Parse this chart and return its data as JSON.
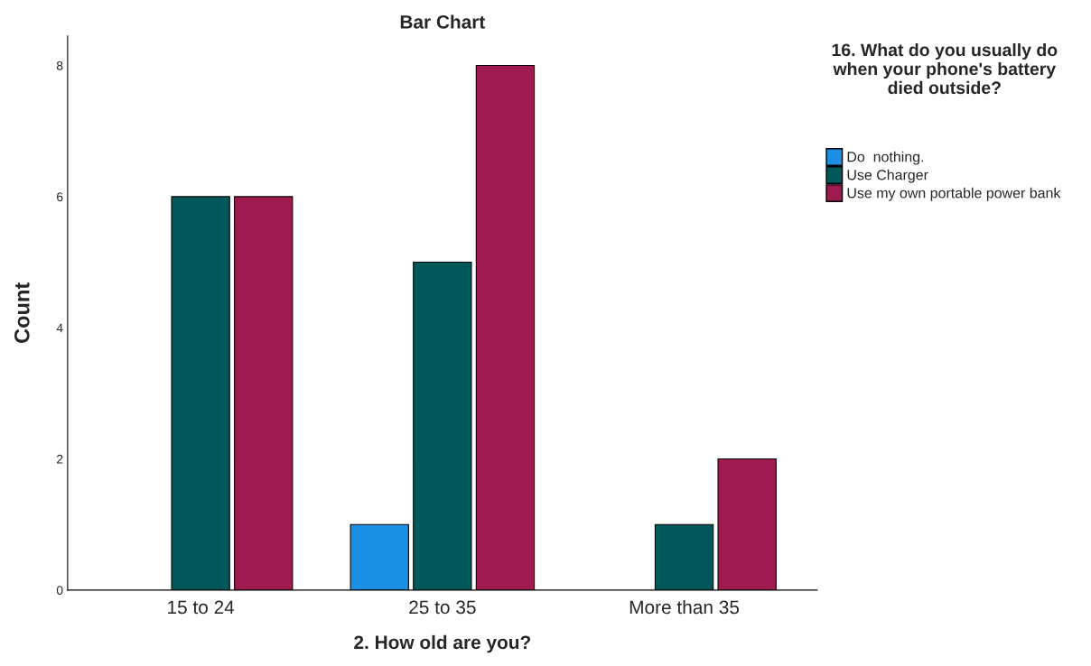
{
  "chart_data": {
    "type": "bar",
    "title": "Bar Chart",
    "xlabel": "2. How old are you?",
    "ylabel": "Count",
    "legend_title": "16. What do you usually do when your phone's battery died outside?",
    "categories": [
      "15 to 24",
      "25 to 35",
      "More than 35"
    ],
    "series": [
      {
        "name": "Do  nothing.",
        "color": "#1a8fe3",
        "values": [
          null,
          1,
          null
        ]
      },
      {
        "name": "Use Charger",
        "color": "#00585a",
        "values": [
          6,
          5,
          1
        ]
      },
      {
        "name": "Use my own portable power bank",
        "color": "#9e1a4f",
        "values": [
          6,
          8,
          2
        ]
      }
    ],
    "ylim": [
      0,
      8.45
    ],
    "yticks": [
      0,
      2,
      4,
      6,
      8
    ],
    "grid": false,
    "legend": "right"
  }
}
